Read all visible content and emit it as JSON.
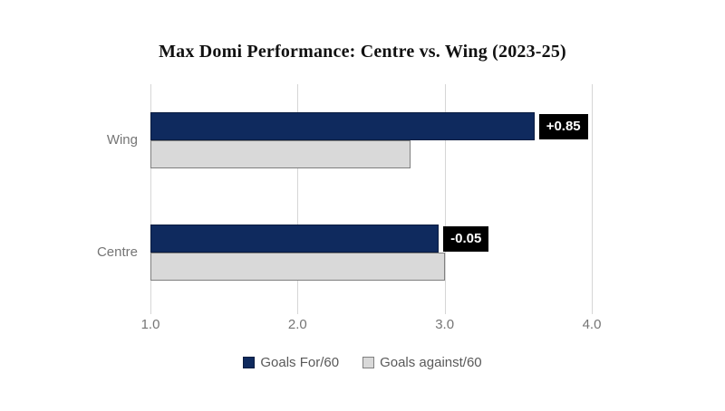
{
  "title": "Max Domi Performance: Centre vs. Wing (2023-25)",
  "colors": {
    "background": "#ffffff",
    "gridline": "#d6d6d6",
    "axis_text": "#757575",
    "legend_text": "#595959",
    "data_label_bg": "#000000",
    "data_label_text": "#ffffff"
  },
  "chart_data": {
    "type": "bar",
    "orientation": "horizontal",
    "title": "Max Domi Performance: Centre vs. Wing (2023-25)",
    "categories": [
      "Wing",
      "Centre"
    ],
    "series": [
      {
        "name": "Goals For/60",
        "color": "#0f2a5e",
        "border": "#0a1c40",
        "values": [
          3.61,
          2.96
        ]
      },
      {
        "name": "Goals against/60",
        "color": "#d9d9d9",
        "border": "#7f7f7f",
        "values": [
          2.77,
          3.0
        ]
      }
    ],
    "data_labels": [
      {
        "category": "Wing",
        "text": "+0.85"
      },
      {
        "category": "Centre",
        "text": "-0.05"
      }
    ],
    "xlim": [
      1.0,
      4.0
    ],
    "xticks": [
      "1.0",
      "2.0",
      "3.0",
      "4.0"
    ],
    "xlabel": "",
    "ylabel": "",
    "grid": "vertical",
    "legend_position": "bottom"
  }
}
